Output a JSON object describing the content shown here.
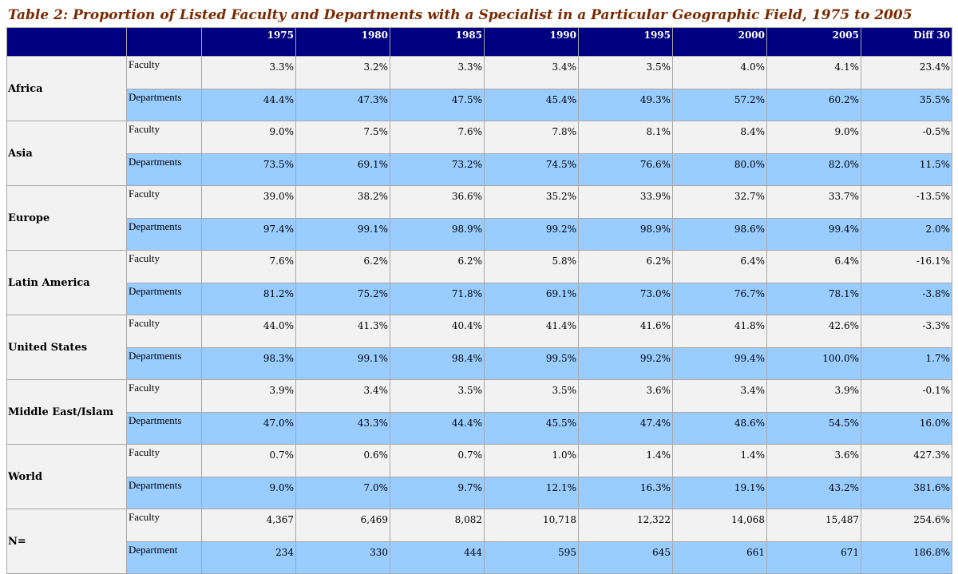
{
  "caption": "Table 2: Proportion of Listed Faculty and Departments with a Specialist in a Particular Geographic Field, 1975 to 2005",
  "colors": {
    "header_bg": "#000080",
    "caption": "#7a2a00",
    "faculty_row": "#f2f2f2",
    "department_row": "#99ccff"
  },
  "columns": [
    "",
    "",
    "1975",
    "1980",
    "1985",
    "1990",
    "1995",
    "2000",
    "2005",
    "Diff 30"
  ],
  "groups": [
    {
      "region": "Africa",
      "rows": [
        {
          "label": "Faculty",
          "values": [
            "3.3%",
            "3.2%",
            "3.3%",
            "3.4%",
            "3.5%",
            "4.0%",
            "4.1%",
            "23.4%"
          ]
        },
        {
          "label": "Departments",
          "values": [
            "44.4%",
            "47.3%",
            "47.5%",
            "45.4%",
            "49.3%",
            "57.2%",
            "60.2%",
            "35.5%"
          ]
        }
      ]
    },
    {
      "region": "Asia",
      "rows": [
        {
          "label": "Faculty",
          "values": [
            "9.0%",
            "7.5%",
            "7.6%",
            "7.8%",
            "8.1%",
            "8.4%",
            "9.0%",
            "-0.5%"
          ]
        },
        {
          "label": "Departments",
          "values": [
            "73.5%",
            "69.1%",
            "73.2%",
            "74.5%",
            "76.6%",
            "80.0%",
            "82.0%",
            "11.5%"
          ]
        }
      ]
    },
    {
      "region": "Europe",
      "rows": [
        {
          "label": "Faculty",
          "values": [
            "39.0%",
            "38.2%",
            "36.6%",
            "35.2%",
            "33.9%",
            "32.7%",
            "33.7%",
            "-13.5%"
          ]
        },
        {
          "label": "Departments",
          "values": [
            "97.4%",
            "99.1%",
            "98.9%",
            "99.2%",
            "98.9%",
            "98.6%",
            "99.4%",
            "2.0%"
          ]
        }
      ]
    },
    {
      "region": "Latin America",
      "rows": [
        {
          "label": "Faculty",
          "values": [
            "7.6%",
            "6.2%",
            "6.2%",
            "5.8%",
            "6.2%",
            "6.4%",
            "6.4%",
            "-16.1%"
          ]
        },
        {
          "label": "Departments",
          "values": [
            "81.2%",
            "75.2%",
            "71.8%",
            "69.1%",
            "73.0%",
            "76.7%",
            "78.1%",
            "-3.8%"
          ]
        }
      ]
    },
    {
      "region": "United States",
      "rows": [
        {
          "label": "Faculty",
          "values": [
            "44.0%",
            "41.3%",
            "40.4%",
            "41.4%",
            "41.6%",
            "41.8%",
            "42.6%",
            "-3.3%"
          ]
        },
        {
          "label": "Departments",
          "values": [
            "98.3%",
            "99.1%",
            "98.4%",
            "99.5%",
            "99.2%",
            "99.4%",
            "100.0%",
            "1.7%"
          ]
        }
      ]
    },
    {
      "region": "Middle East/Islam",
      "rows": [
        {
          "label": "Faculty",
          "values": [
            "3.9%",
            "3.4%",
            "3.5%",
            "3.5%",
            "3.6%",
            "3.4%",
            "3.9%",
            "-0.1%"
          ]
        },
        {
          "label": "Departments",
          "values": [
            "47.0%",
            "43.3%",
            "44.4%",
            "45.5%",
            "47.4%",
            "48.6%",
            "54.5%",
            "16.0%"
          ]
        }
      ]
    },
    {
      "region": "World",
      "rows": [
        {
          "label": "Faculty",
          "values": [
            "0.7%",
            "0.6%",
            "0.7%",
            "1.0%",
            "1.4%",
            "1.4%",
            "3.6%",
            "427.3%"
          ]
        },
        {
          "label": "Departments",
          "values": [
            "9.0%",
            "7.0%",
            "9.7%",
            "12.1%",
            "16.3%",
            "19.1%",
            "43.2%",
            "381.6%"
          ]
        }
      ]
    },
    {
      "region": "N=",
      "rows": [
        {
          "label": "Faculty",
          "values": [
            "4,367",
            "6,469",
            "8,082",
            "10,718",
            "12,322",
            "14,068",
            "15,487",
            "254.6%"
          ]
        },
        {
          "label": "Department",
          "values": [
            "234",
            "330",
            "444",
            "595",
            "645",
            "661",
            "671",
            "186.8%"
          ]
        }
      ]
    }
  ]
}
